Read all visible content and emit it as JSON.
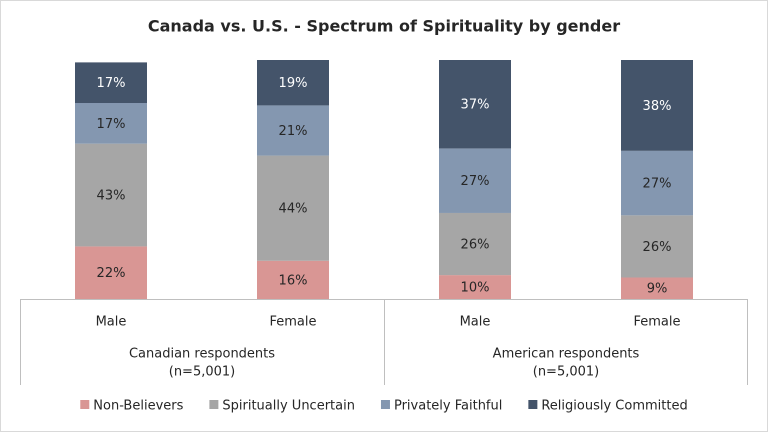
{
  "chart_data": {
    "type": "stacked-bar",
    "title": "Canada vs. U.S. - Spectrum of Spirituality by gender",
    "categories": [
      "Male",
      "Female",
      "Male",
      "Female"
    ],
    "groups": [
      {
        "label": "Canadian respondents",
        "sample": "(n=5,001)"
      },
      {
        "label": "American respondents",
        "sample": "(n=5,001)"
      }
    ],
    "ylim": [
      0,
      100
    ],
    "series": [
      {
        "name": "Non-Believers",
        "color": "#d99694",
        "values": [
          22,
          16,
          10,
          9
        ],
        "value_labels": [
          "22%",
          "16%",
          "10%",
          "9%"
        ]
      },
      {
        "name": "Spiritually Uncertain",
        "color": "#a6a6a6",
        "values": [
          43,
          44,
          26,
          26
        ],
        "value_labels": [
          "43%",
          "44%",
          "26%",
          "26%"
        ]
      },
      {
        "name": "Privately Faithful",
        "color": "#8497b0",
        "values": [
          17,
          21,
          27,
          27
        ],
        "value_labels": [
          "17%",
          "21%",
          "27%",
          "27%"
        ]
      },
      {
        "name": "Religiously Committed",
        "color": "#44546a",
        "values": [
          17,
          19,
          37,
          38
        ],
        "value_labels": [
          "17%",
          "19%",
          "37%",
          "38%"
        ]
      }
    ],
    "legend": "bottom"
  }
}
